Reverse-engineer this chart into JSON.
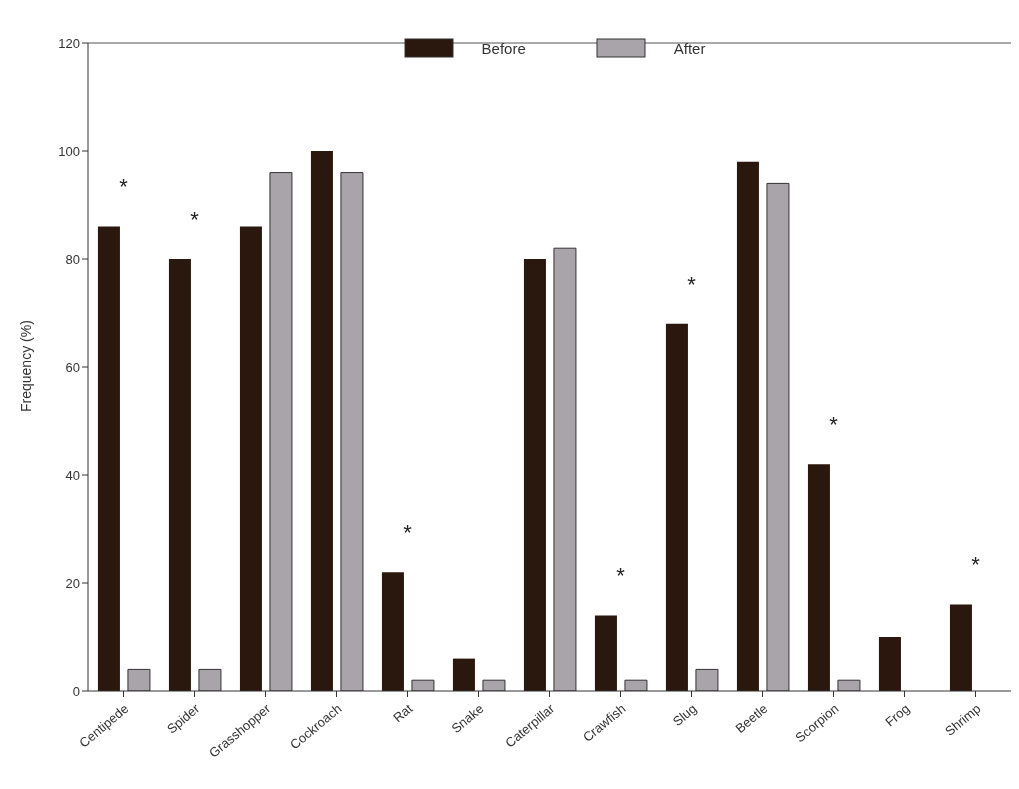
{
  "chart_data": {
    "type": "bar",
    "ylabel": "Frequency (%)",
    "categories": [
      "Centipede",
      "Spider",
      "Grasshopper",
      "Cockroach",
      "Rat",
      "Snake",
      "Caterpillar",
      "Crawfish",
      "Slug",
      "Beetle",
      "Scorpion",
      "Frog",
      "Shrimp"
    ],
    "series": [
      {
        "name": "Before",
        "color": "#2a170d",
        "values": [
          86,
          80,
          86,
          100,
          22,
          6,
          80,
          14,
          68,
          98,
          42,
          10,
          16
        ]
      },
      {
        "name": "After",
        "color": "#a9a3aa",
        "values": [
          4,
          4,
          96,
          96,
          2,
          2,
          82,
          2,
          4,
          94,
          2,
          null,
          null
        ]
      }
    ],
    "ylim": [
      0,
      120
    ],
    "yticks": [
      0,
      20,
      40,
      60,
      80,
      100,
      120
    ],
    "grid": false,
    "legend": "top",
    "annotations": [
      {
        "text": "*",
        "x": "Centipede",
        "y": 86
      },
      {
        "text": "*",
        "x": "Spider",
        "y": 80
      },
      {
        "text": "*",
        "x": "Rat",
        "y": 22
      },
      {
        "text": "*",
        "x": "Crawfish",
        "y": 14
      },
      {
        "text": "*",
        "x": "Slug",
        "y": 68
      },
      {
        "text": "*",
        "x": "Scorpion",
        "y": 42
      },
      {
        "text": "*",
        "x": "Shrimp",
        "y": 16
      }
    ]
  }
}
